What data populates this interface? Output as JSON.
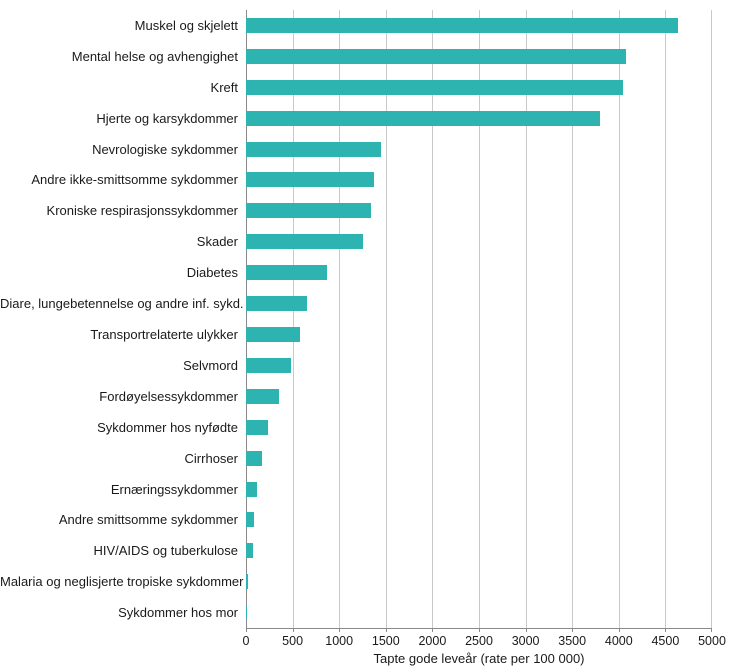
{
  "chart_data": {
    "type": "bar",
    "orientation": "horizontal",
    "title": "",
    "xlabel": "Tapte gode leveår (rate per 100 000)",
    "ylabel": "",
    "xlim": [
      0,
      5000
    ],
    "xticks": [
      0,
      500,
      1000,
      1500,
      2000,
      2500,
      3000,
      3500,
      4000,
      4500,
      5000
    ],
    "grid": true,
    "legend": false,
    "bar_color": "#2db4b1",
    "categories": [
      "Muskel og skjelett",
      "Mental helse og avhengighet",
      "Kreft",
      "Hjerte og karsykdommer",
      "Nevrologiske sykdommer",
      "Andre ikke-smittsomme sykdommer",
      "Kroniske respirasjonssykdommer",
      "Skader",
      "Diabetes",
      "Diare, lungebetennelse og andre inf. sykd.",
      "Transportrelaterte ulykker",
      "Selvmord",
      "Fordøyelsessykdommer",
      "Sykdommer hos nyfødte",
      "Cirrhoser",
      "Ernæringssykdommer",
      "Andre smittsomme sykdommer",
      "HIV/AIDS og tuberkulose",
      "Malaria og neglisjerte tropiske sykdommer",
      "Sykdommer hos mor"
    ],
    "values": [
      4640,
      4080,
      4050,
      3800,
      1450,
      1370,
      1340,
      1260,
      870,
      650,
      580,
      480,
      350,
      240,
      170,
      115,
      85,
      75,
      20,
      12
    ]
  }
}
